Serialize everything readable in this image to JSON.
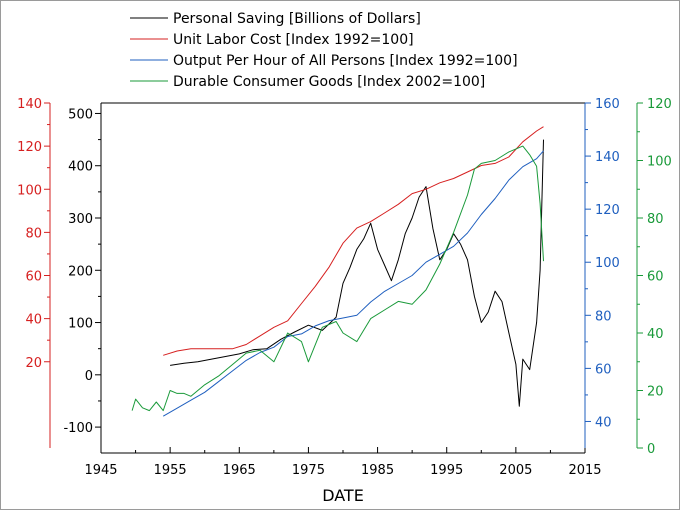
{
  "chart_data": {
    "type": "line",
    "xlabel": "DATE",
    "xlim": [
      1945,
      2015
    ],
    "x_ticks": [
      1945,
      1955,
      1965,
      1975,
      1985,
      1995,
      2005,
      2015
    ],
    "axes": [
      {
        "id": "y_red",
        "color": "#d62020",
        "range": [
          -20,
          140
        ],
        "ticks": [
          20,
          40,
          60,
          80,
          100,
          120,
          140
        ],
        "side": "left-outer"
      },
      {
        "id": "y_black",
        "color": "#000000",
        "range": [
          -140,
          520
        ],
        "ticks": [
          -100,
          0,
          100,
          200,
          300,
          400,
          500
        ],
        "side": "left-inner"
      },
      {
        "id": "y_blue",
        "color": "#1f5fbf",
        "range": [
          30,
          160
        ],
        "ticks": [
          40,
          60,
          80,
          100,
          120,
          140,
          160
        ],
        "side": "right-inner"
      },
      {
        "id": "y_green",
        "color": "#1a9a3a",
        "range": [
          0,
          120
        ],
        "ticks": [
          0,
          20,
          40,
          60,
          80,
          100,
          120
        ],
        "side": "right-outer"
      }
    ],
    "series": [
      {
        "name": "Personal Saving [Billions of Dollars]",
        "color": "#000000",
        "axis": "y_black",
        "x": [
          1955,
          1957,
          1959,
          1961,
          1963,
          1965,
          1967,
          1969,
          1971,
          1973,
          1975,
          1977,
          1979,
          1980,
          1981,
          1982,
          1983,
          1984,
          1985,
          1986,
          1987,
          1988,
          1989,
          1990,
          1991,
          1992,
          1993,
          1994,
          1995,
          1996,
          1997,
          1998,
          1999,
          2000,
          2001,
          2002,
          2003,
          2004,
          2005,
          2005.5,
          2006,
          2007,
          2008,
          2008.5,
          2009
        ],
        "values": [
          18,
          22,
          25,
          30,
          35,
          40,
          48,
          50,
          68,
          82,
          95,
          85,
          110,
          175,
          205,
          240,
          260,
          290,
          240,
          210,
          180,
          220,
          270,
          300,
          340,
          360,
          280,
          220,
          240,
          270,
          250,
          220,
          150,
          100,
          120,
          160,
          140,
          80,
          20,
          -60,
          30,
          10,
          100,
          200,
          450
        ]
      },
      {
        "name": "Unit Labor Cost [Index 1992=100]",
        "color": "#d62020",
        "axis": "y_red",
        "x": [
          1954,
          1956,
          1958,
          1960,
          1962,
          1964,
          1966,
          1968,
          1970,
          1972,
          1974,
          1976,
          1978,
          1980,
          1982,
          1984,
          1986,
          1988,
          1990,
          1992,
          1994,
          1996,
          1998,
          2000,
          2002,
          2004,
          2006,
          2008,
          2009
        ],
        "values": [
          23,
          25,
          26,
          26,
          26,
          26,
          28,
          32,
          36,
          39,
          47,
          55,
          64,
          75,
          82,
          85,
          89,
          93,
          98,
          100,
          103,
          105,
          108,
          111,
          112,
          115,
          122,
          127,
          129
        ]
      },
      {
        "name": "Output Per Hour of All Persons [Index 1992=100]",
        "color": "#1f5fbf",
        "axis": "y_blue",
        "x": [
          1954,
          1956,
          1958,
          1960,
          1962,
          1964,
          1966,
          1968,
          1970,
          1972,
          1974,
          1976,
          1978,
          1980,
          1982,
          1984,
          1986,
          1988,
          1990,
          1992,
          1994,
          1996,
          1998,
          2000,
          2002,
          2004,
          2006,
          2008,
          2009
        ],
        "values": [
          42,
          45,
          48,
          51,
          55,
          59,
          63,
          66,
          68,
          72,
          73,
          76,
          78,
          79,
          80,
          85,
          89,
          92,
          95,
          100,
          103,
          106,
          111,
          118,
          124,
          131,
          136,
          139,
          142
        ]
      },
      {
        "name": "Durable Consumer Goods [Index 2002=100]",
        "color": "#1a9a3a",
        "axis": "y_green",
        "x": [
          1949.5,
          1950,
          1951,
          1952,
          1953,
          1954,
          1955,
          1956,
          1957,
          1958,
          1960,
          1962,
          1964,
          1966,
          1968,
          1970,
          1972,
          1974,
          1975,
          1977,
          1979,
          1980,
          1982,
          1984,
          1986,
          1988,
          1990,
          1992,
          1994,
          1996,
          1998,
          1999,
          2000,
          2002,
          2004,
          2006,
          2007,
          2008,
          2008.5,
          2009
        ],
        "values": [
          13,
          17,
          14,
          13,
          16,
          13,
          20,
          19,
          19,
          18,
          22,
          25,
          29,
          33,
          34,
          30,
          40,
          37,
          30,
          42,
          44,
          40,
          37,
          45,
          48,
          51,
          50,
          55,
          64,
          75,
          88,
          97,
          99,
          100,
          103,
          105,
          102,
          98,
          85,
          65
        ]
      }
    ]
  }
}
